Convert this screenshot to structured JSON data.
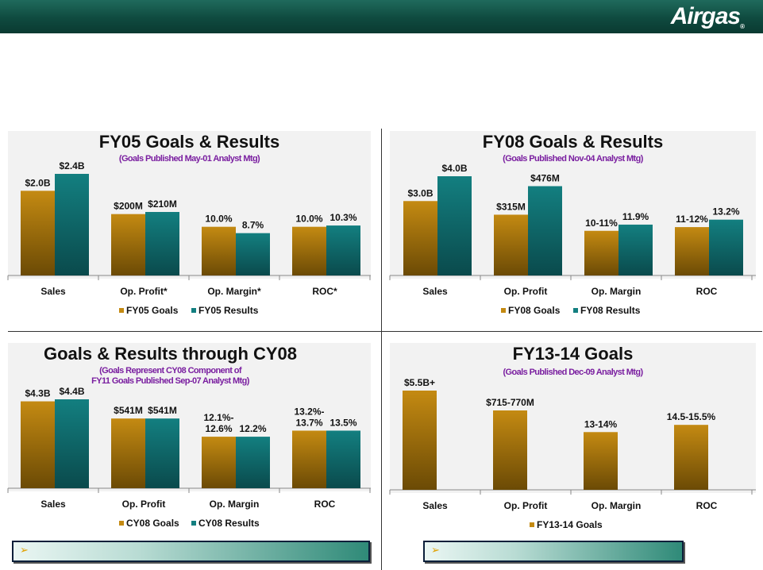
{
  "header": {
    "logo_text": "Airgas",
    "logo_mark": "®"
  },
  "colors": {
    "goals": "#c48a12",
    "results": "#137f80",
    "header": "#0f4a3f"
  },
  "chart_data": [
    {
      "type": "bar",
      "title": "FY05 Goals & Results",
      "subtitle": "(Goals Published May-01 Analyst Mtg)",
      "categories": [
        "Sales",
        "Op. Profit*",
        "Op. Margin*",
        "ROC*"
      ],
      "series": [
        {
          "name": "FY05 Goals",
          "values": [
            2.0,
            1.45,
            1.15,
            1.15
          ],
          "labels": [
            "$2.0B",
            "$200M",
            "10.0%",
            "10.0%"
          ]
        },
        {
          "name": "FY05 Results",
          "values": [
            2.4,
            1.5,
            1.0,
            1.18
          ],
          "labels": [
            "$2.4B",
            "$210M",
            "8.7%",
            "10.3%"
          ]
        }
      ],
      "legend": "bottom"
    },
    {
      "type": "bar",
      "title": "FY08 Goals & Results",
      "subtitle": "(Goals Published Nov-04 Analyst Mtg)",
      "categories": [
        "Sales",
        "Op. Profit",
        "Op. Margin",
        "ROC"
      ],
      "series": [
        {
          "name": "FY08 Goals",
          "values": [
            3.0,
            2.45,
            1.8,
            1.95
          ],
          "labels": [
            "$3.0B",
            "$315M",
            "10-11%",
            "11-12%"
          ]
        },
        {
          "name": "FY08 Results",
          "values": [
            4.0,
            3.6,
            2.05,
            2.25
          ],
          "labels": [
            "$4.0B",
            "$476M",
            "11.9%",
            "13.2%"
          ]
        }
      ],
      "legend": "bottom"
    },
    {
      "type": "bar",
      "title": "Goals & Results through CY08",
      "subtitle_lines": [
        "(Goals Represent CY08 Component of",
        "FY11 Goals Published Sep-07 Analyst Mtg)"
      ],
      "categories": [
        "Sales",
        "Op. Profit",
        "Op. Margin",
        "ROC"
      ],
      "series": [
        {
          "name": "CY08 Goals",
          "values": [
            4.3,
            3.45,
            2.55,
            2.85
          ],
          "labels": [
            "$4.3B",
            "$541M",
            "12.1%-\n12.6%",
            "13.2%-\n13.7%"
          ]
        },
        {
          "name": "CY08 Results",
          "values": [
            4.4,
            3.45,
            2.55,
            2.85
          ],
          "labels": [
            "$4.4B",
            "$541M",
            "12.2%",
            "13.5%"
          ]
        }
      ],
      "legend": "bottom"
    },
    {
      "type": "bar",
      "title": "FY13-14 Goals",
      "subtitle": "(Goals Published Dec-09 Analyst Mtg)",
      "categories": [
        "Sales",
        "Op. Profit",
        "Op. Margin",
        "ROC"
      ],
      "series": [
        {
          "name": "FY13-14 Goals",
          "values": [
            5.5,
            4.4,
            3.2,
            3.6
          ],
          "labels": [
            "$5.5B+",
            "$715-770M",
            "13-14%",
            "14.5-15.5%"
          ]
        }
      ],
      "legend": "bottom"
    }
  ]
}
